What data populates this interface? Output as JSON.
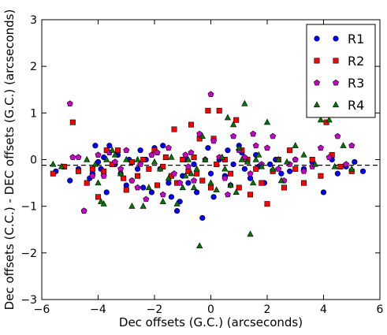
{
  "chart_data": {
    "type": "scatter",
    "title": "",
    "xlabel": "Dec offsets (G.C.) (arcseconds)",
    "ylabel": "Dec offsets (C.C.) - DEC offsets (G.C.) (arcseconds)",
    "xlim": [
      -6,
      6
    ],
    "ylim": [
      -3,
      3
    ],
    "xticks": [
      "−6",
      "−4",
      "−2",
      "0",
      "2",
      "4",
      "6"
    ],
    "yticks": [
      "−3",
      "−2",
      "−1",
      "0",
      "1",
      "2",
      "3"
    ],
    "grid": false,
    "legend_position": "top-right",
    "reference_line": {
      "y": -0.12,
      "style": "dashed",
      "color": "#000000"
    },
    "series": [
      {
        "name": "R1",
        "marker": "circle",
        "color": "#0000ff",
        "points": [
          [
            -5.5,
            -0.25
          ],
          [
            -5.0,
            -0.45
          ],
          [
            -4.7,
            -0.2
          ],
          [
            -4.5,
            -1.1
          ],
          [
            -4.3,
            -0.4
          ],
          [
            -4.2,
            -0.3
          ],
          [
            -4.1,
            0.3
          ],
          [
            -4.0,
            -0.05
          ],
          [
            -3.9,
            -0.2
          ],
          [
            -3.8,
            0.05
          ],
          [
            -3.7,
            -0.7
          ],
          [
            -3.6,
            0.3
          ],
          [
            -3.4,
            -0.1
          ],
          [
            -3.3,
            0.1
          ],
          [
            -3.2,
            -0.3
          ],
          [
            -3.0,
            -0.55
          ],
          [
            -2.9,
            0.0
          ],
          [
            -2.8,
            -0.45
          ],
          [
            -2.6,
            -0.2
          ],
          [
            -2.5,
            0.2
          ],
          [
            -2.4,
            -0.6
          ],
          [
            -2.3,
            0.0
          ],
          [
            -2.1,
            -0.7
          ],
          [
            -2.0,
            0.25
          ],
          [
            -1.8,
            -0.2
          ],
          [
            -1.7,
            0.3
          ],
          [
            -1.5,
            -0.5
          ],
          [
            -1.4,
            -0.8
          ],
          [
            -1.2,
            -1.1
          ],
          [
            -1.0,
            -0.35
          ],
          [
            -0.9,
            0.0
          ],
          [
            -0.8,
            -0.5
          ],
          [
            -0.6,
            -0.1
          ],
          [
            -0.5,
            -0.7
          ],
          [
            -0.3,
            -1.25
          ],
          [
            -0.1,
            0.25
          ],
          [
            0.0,
            -0.3
          ],
          [
            0.1,
            -0.8
          ],
          [
            0.3,
            0.0
          ],
          [
            0.5,
            -0.35
          ],
          [
            0.6,
            0.2
          ],
          [
            0.8,
            -0.1
          ],
          [
            1.0,
            0.3
          ],
          [
            1.2,
            -0.2
          ],
          [
            1.4,
            -0.4
          ],
          [
            1.6,
            0.1
          ],
          [
            1.7,
            -0.15
          ],
          [
            1.9,
            -0.5
          ],
          [
            2.1,
            -0.1
          ],
          [
            2.3,
            0.0
          ],
          [
            2.5,
            -0.3
          ],
          [
            2.8,
            -0.25
          ],
          [
            3.0,
            0.0
          ],
          [
            3.3,
            -0.2
          ],
          [
            3.6,
            -0.05
          ],
          [
            4.0,
            -0.7
          ],
          [
            4.3,
            0.0
          ],
          [
            4.5,
            -0.3
          ],
          [
            4.8,
            -0.15
          ],
          [
            5.1,
            -0.05
          ],
          [
            5.4,
            -0.25
          ],
          [
            -1.1,
            -0.9
          ],
          [
            0.7,
            -0.55
          ],
          [
            1.1,
            0.15
          ]
        ]
      },
      {
        "name": "R2",
        "marker": "square",
        "color": "#ff0000",
        "points": [
          [
            -5.6,
            -0.3
          ],
          [
            -5.2,
            -0.15
          ],
          [
            -4.9,
            0.8
          ],
          [
            -4.7,
            -0.25
          ],
          [
            -4.4,
            -0.5
          ],
          [
            -4.2,
            -0.2
          ],
          [
            -4.0,
            -0.8
          ],
          [
            -3.8,
            -0.25
          ],
          [
            -3.7,
            0.2
          ],
          [
            -3.5,
            -0.1
          ],
          [
            -3.3,
            0.2
          ],
          [
            -3.1,
            -0.4
          ],
          [
            -3.0,
            -0.65
          ],
          [
            -2.8,
            -0.05
          ],
          [
            -2.6,
            -0.35
          ],
          [
            -2.4,
            0.0
          ],
          [
            -2.2,
            -0.2
          ],
          [
            -2.0,
            0.2
          ],
          [
            -1.9,
            -0.55
          ],
          [
            -1.7,
            -0.15
          ],
          [
            -1.6,
            0.05
          ],
          [
            -1.4,
            -0.35
          ],
          [
            -1.2,
            -0.5
          ],
          [
            -1.0,
            0.0
          ],
          [
            -0.8,
            -0.25
          ],
          [
            -0.7,
            0.75
          ],
          [
            -0.6,
            0.05
          ],
          [
            -0.5,
            -0.3
          ],
          [
            -0.4,
            0.45
          ],
          [
            -0.3,
            -0.45
          ],
          [
            -0.1,
            1.05
          ],
          [
            0.1,
            0.45
          ],
          [
            0.2,
            -0.1
          ],
          [
            0.3,
            1.05
          ],
          [
            0.5,
            0.0
          ],
          [
            0.7,
            -0.3
          ],
          [
            0.9,
            0.85
          ],
          [
            1.0,
            -0.6
          ],
          [
            1.1,
            0.2
          ],
          [
            1.3,
            0.0
          ],
          [
            1.4,
            -0.75
          ],
          [
            1.6,
            -0.2
          ],
          [
            1.8,
            -0.5
          ],
          [
            2.0,
            -0.95
          ],
          [
            2.2,
            -0.25
          ],
          [
            2.4,
            0.0
          ],
          [
            2.6,
            -0.6
          ],
          [
            2.8,
            0.2
          ],
          [
            3.0,
            -0.2
          ],
          [
            3.3,
            -0.5
          ],
          [
            3.6,
            0.0
          ],
          [
            3.9,
            -0.35
          ],
          [
            4.1,
            0.8
          ],
          [
            4.3,
            0.1
          ],
          [
            4.6,
            -0.15
          ],
          [
            5.0,
            -0.25
          ],
          [
            -1.3,
            0.65
          ],
          [
            0.0,
            -0.6
          ]
        ]
      },
      {
        "name": "R3",
        "marker": "pentagon",
        "color": "#cc00cc",
        "points": [
          [
            -5.0,
            1.2
          ],
          [
            -4.9,
            0.05
          ],
          [
            -4.7,
            0.05
          ],
          [
            -4.5,
            -1.1
          ],
          [
            -4.2,
            -0.35
          ],
          [
            -4.0,
            0.1
          ],
          [
            -3.8,
            -0.35
          ],
          [
            -3.6,
            0.15
          ],
          [
            -3.4,
            -0.05
          ],
          [
            -3.2,
            -0.2
          ],
          [
            -3.0,
            0.2
          ],
          [
            -2.8,
            -0.45
          ],
          [
            -2.6,
            -0.6
          ],
          [
            -2.5,
            -0.1
          ],
          [
            -2.3,
            -0.85
          ],
          [
            -2.1,
            0.1
          ],
          [
            -1.9,
            0.15
          ],
          [
            -1.7,
            -0.75
          ],
          [
            -1.5,
            0.25
          ],
          [
            -1.3,
            -0.3
          ],
          [
            -1.1,
            -0.5
          ],
          [
            -0.9,
            0.1
          ],
          [
            -0.7,
            0.15
          ],
          [
            -0.6,
            -0.45
          ],
          [
            -0.4,
            0.55
          ],
          [
            -0.2,
            0.0
          ],
          [
            0.0,
            1.4
          ],
          [
            0.1,
            0.4
          ],
          [
            0.3,
            0.05
          ],
          [
            0.5,
            -0.4
          ],
          [
            0.8,
            0.5
          ],
          [
            1.0,
            0.2
          ],
          [
            1.2,
            0.05
          ],
          [
            1.4,
            -0.3
          ],
          [
            1.6,
            0.3
          ],
          [
            1.8,
            -0.1
          ],
          [
            2.0,
            0.25
          ],
          [
            2.2,
            0.5
          ],
          [
            2.4,
            -0.2
          ],
          [
            2.6,
            -0.45
          ],
          [
            2.8,
            -0.1
          ],
          [
            3.0,
            0.0
          ],
          [
            3.3,
            -0.25
          ],
          [
            3.6,
            -0.15
          ],
          [
            3.9,
            0.25
          ],
          [
            4.2,
            0.05
          ],
          [
            4.5,
            0.5
          ],
          [
            4.8,
            -0.1
          ],
          [
            5.0,
            0.3
          ],
          [
            -0.8,
            -0.15
          ],
          [
            0.6,
            -0.75
          ],
          [
            1.5,
            0.55
          ]
        ]
      },
      {
        "name": "R4",
        "marker": "triangle",
        "color": "#007700",
        "points": [
          [
            -5.6,
            -0.1
          ],
          [
            -5.3,
            -0.15
          ],
          [
            -4.4,
            0.0
          ],
          [
            -4.1,
            -0.1
          ],
          [
            -4.0,
            -0.5
          ],
          [
            -3.9,
            -0.9
          ],
          [
            -3.8,
            -0.95
          ],
          [
            -3.7,
            0.0
          ],
          [
            -3.5,
            0.2
          ],
          [
            -3.4,
            0.1
          ],
          [
            -3.2,
            -0.3
          ],
          [
            -3.0,
            0.0
          ],
          [
            -2.8,
            -1.0
          ],
          [
            -2.6,
            0.0
          ],
          [
            -2.4,
            -1.0
          ],
          [
            -2.2,
            -0.6
          ],
          [
            -2.0,
            -0.05
          ],
          [
            -1.8,
            -0.2
          ],
          [
            -1.7,
            -0.9
          ],
          [
            -1.5,
            -0.4
          ],
          [
            -1.4,
            0.05
          ],
          [
            -1.2,
            -0.95
          ],
          [
            -1.0,
            -0.6
          ],
          [
            -0.8,
            0.0
          ],
          [
            -0.7,
            -0.3
          ],
          [
            -0.6,
            -0.6
          ],
          [
            -0.5,
            -0.2
          ],
          [
            -0.4,
            -1.85
          ],
          [
            -0.3,
            0.5
          ],
          [
            -0.2,
            0.0
          ],
          [
            0.0,
            -0.5
          ],
          [
            0.2,
            -0.65
          ],
          [
            0.4,
            0.05
          ],
          [
            0.5,
            -0.2
          ],
          [
            0.6,
            0.9
          ],
          [
            0.7,
            -0.55
          ],
          [
            0.8,
            0.75
          ],
          [
            0.9,
            -0.7
          ],
          [
            1.0,
            0.25
          ],
          [
            1.1,
            0.0
          ],
          [
            1.2,
            1.2
          ],
          [
            1.3,
            -0.05
          ],
          [
            1.4,
            -1.6
          ],
          [
            1.5,
            -0.5
          ],
          [
            1.6,
            0.0
          ],
          [
            1.8,
            -0.15
          ],
          [
            2.0,
            0.8
          ],
          [
            2.2,
            -0.2
          ],
          [
            2.4,
            0.0
          ],
          [
            2.5,
            -0.45
          ],
          [
            2.7,
            -0.05
          ],
          [
            3.0,
            0.3
          ],
          [
            3.3,
            0.1
          ],
          [
            3.7,
            -0.1
          ],
          [
            3.9,
            0.85
          ],
          [
            4.2,
            0.85
          ],
          [
            4.4,
            -0.15
          ],
          [
            4.7,
            0.3
          ],
          [
            5.0,
            -0.2
          ],
          [
            -0.9,
            -0.35
          ],
          [
            1.7,
            0.1
          ]
        ]
      }
    ]
  }
}
